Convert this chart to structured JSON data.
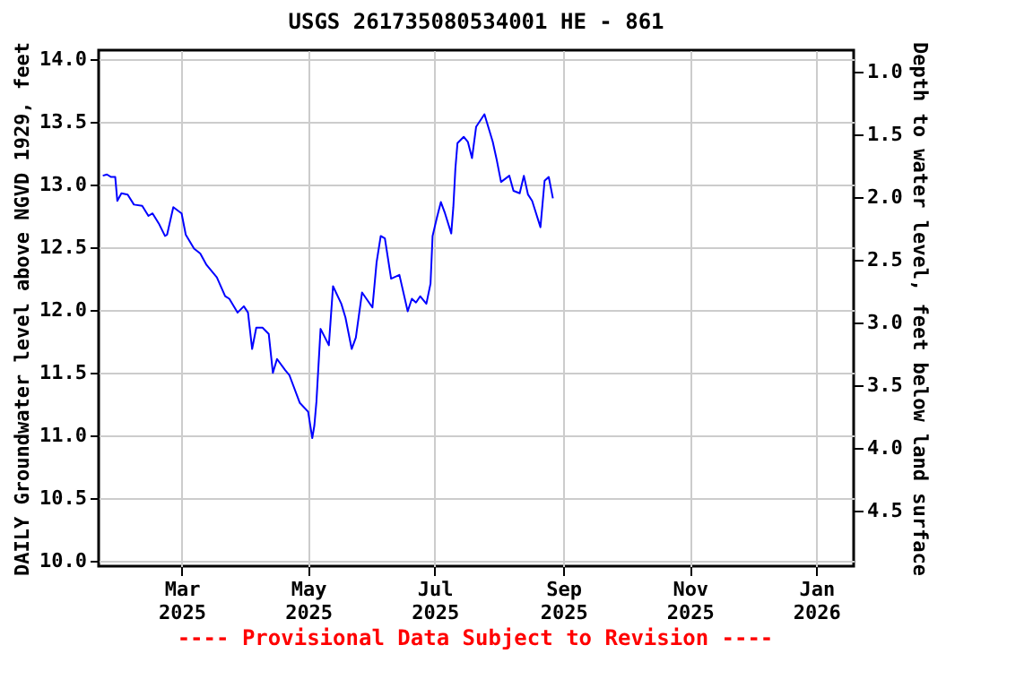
{
  "chart_data": {
    "type": "line",
    "title": "USGS 261735080534001 HE - 861",
    "ylabel": "DAILY Groundwater level above NGVD 1929, feet",
    "y2label": "Depth to water level, feet below land surface",
    "annotations": [
      "---- Provisional Data Subject to Revision ----"
    ],
    "x": [
      "2025-01-22",
      "2025-01-24",
      "2025-01-26",
      "2025-01-28",
      "2025-01-29",
      "2025-01-31",
      "2025-02-03",
      "2025-02-06",
      "2025-02-10",
      "2025-02-13",
      "2025-02-15",
      "2025-02-18",
      "2025-02-21",
      "2025-02-22",
      "2025-02-25",
      "2025-03-01",
      "2025-03-03",
      "2025-03-07",
      "2025-03-10",
      "2025-03-13",
      "2025-03-18",
      "2025-03-22",
      "2025-03-24",
      "2025-03-28",
      "2025-03-31",
      "2025-04-02",
      "2025-04-04",
      "2025-04-06",
      "2025-04-09",
      "2025-04-12",
      "2025-04-14",
      "2025-04-16",
      "2025-04-20",
      "2025-04-22",
      "2025-04-27",
      "2025-05-01",
      "2025-05-03",
      "2025-05-04",
      "2025-05-05",
      "2025-05-07",
      "2025-05-11",
      "2025-05-13",
      "2025-05-17",
      "2025-05-19",
      "2025-05-22",
      "2025-05-24",
      "2025-05-27",
      "2025-06-01",
      "2025-06-03",
      "2025-06-05",
      "2025-06-07",
      "2025-06-10",
      "2025-06-14",
      "2025-06-18",
      "2025-06-20",
      "2025-06-22",
      "2025-06-24",
      "2025-06-27",
      "2025-06-29",
      "2025-06-30",
      "2025-07-02",
      "2025-07-04",
      "2025-07-06",
      "2025-07-09",
      "2025-07-10",
      "2025-07-11",
      "2025-07-12",
      "2025-07-15",
      "2025-07-17",
      "2025-07-19",
      "2025-07-21",
      "2025-07-25",
      "2025-07-29",
      "2025-07-31",
      "2025-08-02",
      "2025-08-06",
      "2025-08-08",
      "2025-08-11",
      "2025-08-13",
      "2025-08-15",
      "2025-08-17",
      "2025-08-21",
      "2025-08-23",
      "2025-08-25",
      "2025-08-27"
    ],
    "series": [
      {
        "color": "#0000ff",
        "values": [
          13.07,
          13.08,
          13.06,
          13.06,
          12.87,
          12.93,
          12.92,
          12.84,
          12.83,
          12.75,
          12.77,
          12.69,
          12.59,
          12.6,
          12.82,
          12.77,
          12.6,
          12.49,
          12.45,
          12.36,
          12.26,
          12.11,
          12.09,
          11.98,
          12.03,
          11.98,
          11.69,
          11.86,
          11.86,
          11.81,
          11.5,
          11.61,
          11.52,
          11.48,
          11.26,
          11.19,
          10.98,
          11.08,
          11.27,
          11.85,
          11.72,
          12.19,
          12.05,
          11.94,
          11.69,
          11.78,
          12.14,
          12.02,
          12.38,
          12.59,
          12.57,
          12.25,
          12.28,
          11.99,
          12.09,
          12.06,
          12.11,
          12.05,
          12.21,
          12.59,
          12.73,
          12.86,
          12.77,
          12.61,
          12.82,
          13.13,
          13.33,
          13.38,
          13.34,
          13.21,
          13.46,
          13.56,
          13.34,
          13.19,
          13.02,
          13.07,
          12.95,
          12.93,
          13.07,
          12.92,
          12.87,
          12.66,
          13.03,
          13.06,
          12.89
        ]
      }
    ],
    "xlim": [
      "2025-01-20",
      "2026-01-19"
    ],
    "xticks": [
      {
        "value": "2025-03-01",
        "label": "Mar 2025"
      },
      {
        "value": "2025-05-01",
        "label": "May 2025"
      },
      {
        "value": "2025-07-01",
        "label": "Jul 2025"
      },
      {
        "value": "2025-09-01",
        "label": "Sep 2025"
      },
      {
        "value": "2025-11-01",
        "label": "Nov 2025"
      },
      {
        "value": "2026-01-01",
        "label": "Jan 2026"
      }
    ],
    "ylim": [
      9.96,
      14.07
    ],
    "yticks": [
      {
        "value": 10,
        "label": "10.0"
      },
      {
        "value": 10.5,
        "label": "10.5"
      },
      {
        "value": 11,
        "label": "11.0"
      },
      {
        "value": 11.5,
        "label": "11.5"
      },
      {
        "value": 12,
        "label": "12.0"
      },
      {
        "value": 12.5,
        "label": "12.5"
      },
      {
        "value": 13,
        "label": "13.0"
      },
      {
        "value": 13.5,
        "label": "13.5"
      },
      {
        "value": 14,
        "label": "14.0"
      }
    ],
    "y2lim": [
      4.94,
      0.83
    ],
    "y2ticks": [
      {
        "value": 1,
        "label": "1.0"
      },
      {
        "value": 1.5,
        "label": "1.5"
      },
      {
        "value": 2,
        "label": "2.0"
      },
      {
        "value": 2.5,
        "label": "2.5"
      },
      {
        "value": 3,
        "label": "3.0"
      },
      {
        "value": 3.5,
        "label": "3.5"
      },
      {
        "value": 4,
        "label": "4.0"
      },
      {
        "value": 4.5,
        "label": "4.5"
      }
    ],
    "grid": true,
    "marker": "none",
    "line_style": "solid"
  }
}
